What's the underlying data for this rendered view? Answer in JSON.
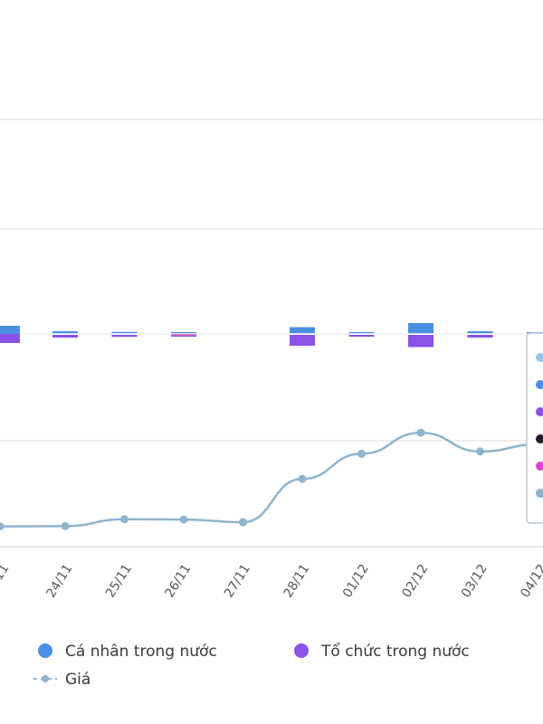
{
  "chart_data": {
    "type": "bar",
    "categories": [
      "24/11",
      "25/11",
      "26/11",
      "27/11",
      "28/11",
      "01/12",
      "02/12",
      "03/12",
      "04/12"
    ],
    "partial_first_tick": "/11",
    "series": [
      {
        "name": "Cá nhân trong nước",
        "kind": "bar",
        "color": "#4a90e2",
        "values": [
          2,
          1.5,
          0.5,
          0,
          5,
          1,
          8,
          2,
          0.5
        ]
      },
      {
        "name": "Tổ chức trong nước",
        "kind": "bar",
        "color": "#8a52e6",
        "values": [
          -2,
          -1.5,
          -0.8,
          0,
          -8,
          -1.2,
          -9,
          -2,
          -0.5
        ]
      },
      {
        "name": "Giá",
        "kind": "line",
        "color": "#8fb4cc",
        "values": [
          6.2,
          8.3,
          8.2,
          7.4,
          20.5,
          28.1,
          34.5,
          28.8,
          31.0
        ]
      }
    ],
    "price_start_value": 6.1,
    "bar_axis_range": [
      -25,
      25
    ],
    "price_axis_range": [
      0,
      100
    ],
    "grid": true,
    "legend_position": "bottom",
    "tooltip": {
      "visible": true,
      "partial": true,
      "marker_colors": [
        "#9cc3e6",
        "#4a90e2",
        "#8a52e6",
        "#2a1a2e",
        "#e040d0",
        "#8fb4cc"
      ]
    }
  },
  "legend": {
    "items": [
      {
        "label": "Cá nhân trong nước",
        "color": "#4a90e2",
        "marker": "circle"
      },
      {
        "label": "Tổ chức trong nước",
        "color": "#8a52e6",
        "marker": "circle"
      },
      {
        "label": "Giá",
        "color": "#8fb4cc",
        "marker": "dash-dot"
      }
    ]
  }
}
